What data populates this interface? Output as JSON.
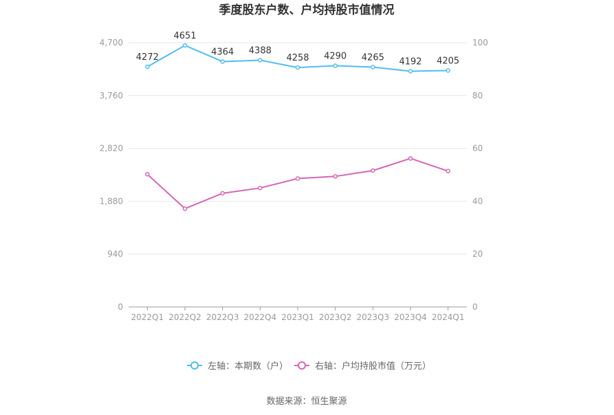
{
  "chart_data": {
    "type": "line",
    "title": "季度股东户数、户均持股市值情况",
    "categories": [
      "2022Q1",
      "2022Q2",
      "2022Q3",
      "2022Q4",
      "2023Q1",
      "2023Q2",
      "2023Q3",
      "2023Q4",
      "2024Q1"
    ],
    "series": [
      {
        "name": "左轴：本期数（户）",
        "axis": "left",
        "color": "#4fbdf0",
        "values": [
          4272,
          4651,
          4364,
          4388,
          4258,
          4290,
          4265,
          4192,
          4205
        ],
        "labels": [
          "4272",
          "4651",
          "4364",
          "4388",
          "4258",
          "4290",
          "4265",
          "4192",
          "4205"
        ]
      },
      {
        "name": "右轴：户均持股市值（万元）",
        "axis": "right",
        "color": "#d466b4",
        "values": [
          50.2,
          37.2,
          43.0,
          45.0,
          48.6,
          49.4,
          51.6,
          56.2,
          51.4
        ]
      }
    ],
    "y_left": {
      "range": [
        0,
        4700
      ],
      "ticks": [
        "0",
        "940",
        "1,880",
        "2,820",
        "3,760",
        "4,700"
      ],
      "tick_values": [
        0,
        940,
        1880,
        2820,
        3760,
        4700
      ]
    },
    "y_right": {
      "range": [
        0,
        100
      ],
      "ticks": [
        "0",
        "20",
        "40",
        "60",
        "80",
        "100"
      ],
      "tick_values": [
        0,
        20,
        40,
        60,
        80,
        100
      ]
    },
    "grid": true,
    "legend_position": "bottom"
  },
  "source": "数据来源：恒生聚源"
}
